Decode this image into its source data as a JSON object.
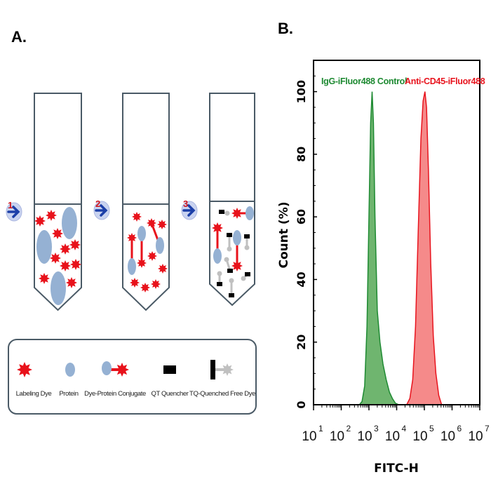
{
  "panel_a": {
    "label": "A.",
    "steps": [
      "1",
      "2",
      "3"
    ],
    "legend": [
      {
        "label": "Labeling Dye",
        "icon": "red-star"
      },
      {
        "label": "Protein",
        "icon": "blue-ellipse"
      },
      {
        "label": "Dye-Protein Conjugate",
        "icon": "ellipse-linked-star"
      },
      {
        "label": "QT Quencher",
        "icon": "black-rect"
      },
      {
        "label": "TQ-Quenched Free Dye",
        "icon": "black-bar-linked-gray-star"
      }
    ],
    "colors": {
      "dye": "#e8121b",
      "protein": "#95b1d3",
      "quencher": "#000000",
      "quenched_dye": "#c0c0c0",
      "arrow": "#1c3fa8"
    }
  },
  "chart_data": {
    "panel_label": "B.",
    "type": "area",
    "xlabel": "FITC-H",
    "ylabel": "Count  (%)",
    "xscale": "log",
    "xlim": [
      10,
      10000000
    ],
    "ylim": [
      0,
      110
    ],
    "xticks": [
      {
        "base": "10",
        "exp": "1"
      },
      {
        "base": "10",
        "exp": "2"
      },
      {
        "base": "10",
        "exp": "3"
      },
      {
        "base": "10",
        "exp": "4"
      },
      {
        "base": "10",
        "exp": "5"
      },
      {
        "base": "10",
        "exp": "6"
      },
      {
        "base": "10",
        "exp": "7"
      }
    ],
    "yticks": [
      "0",
      "20",
      "40",
      "60",
      "80",
      "100"
    ],
    "grid": false,
    "series": [
      {
        "name": "IgG-iFluor488 Control",
        "color": "#1e8a32",
        "fill": "#6fb56f",
        "x": [
          450,
          560,
          700,
          850,
          1000,
          1150,
          1300,
          1450,
          1650,
          2000,
          2500,
          3200,
          4200,
          5500,
          7000,
          9000,
          12000
        ],
        "y": [
          0,
          1,
          6,
          25,
          60,
          90,
          100,
          90,
          60,
          30,
          20,
          13,
          8,
          4,
          2,
          0.5,
          0
        ]
      },
      {
        "name": "Anti-CD45-iFluor488",
        "color": "#e8141e",
        "fill": "#f58a8a",
        "x": [
          23000,
          30000,
          38000,
          48000,
          60000,
          75000,
          90000,
          105000,
          120000,
          140000,
          170000,
          210000,
          260000,
          330000,
          420000
        ],
        "y": [
          0,
          2,
          8,
          25,
          55,
          85,
          97,
          100,
          95,
          75,
          45,
          22,
          10,
          3,
          0
        ]
      }
    ]
  }
}
